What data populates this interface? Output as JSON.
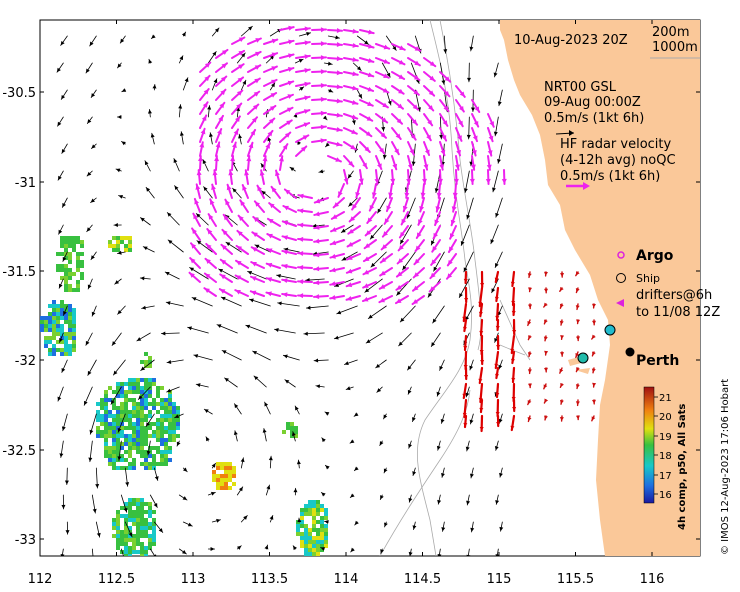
{
  "header": {
    "date": "10-Aug-2023 20Z",
    "depth_label_1": "200m",
    "depth_label_2": "1000m"
  },
  "legend": {
    "gsl_title": "NRT00 GSL",
    "gsl_date": "09-Aug 00:00Z",
    "gsl_scale": "0.5m/s (1kt 6h)",
    "hf_title": "HF radar velocity",
    "hf_sub": "(4-12h avg) noQC",
    "hf_scale": "0.5m/s (1kt 6h)",
    "argo": "Argo",
    "ship": "Ship",
    "drifters_1": "drifters@6h",
    "drifters_2": "to 11/08 12Z"
  },
  "places": {
    "city": "Perth"
  },
  "colorbar": {
    "title": "4h comp, p50, All Sats",
    "ticks": [
      "21",
      "20",
      "19",
      "18",
      "17",
      "16"
    ]
  },
  "credit": "© IMOS 12-Aug-2023 17:06 Hobart",
  "axes": {
    "x_ticks": [
      "112",
      "112.5",
      "113",
      "113.5",
      "114",
      "114.5",
      "115",
      "115.5",
      "116"
    ],
    "y_ticks": [
      "-30.5",
      "-31",
      "-31.5",
      "-32",
      "-32.5",
      "-33"
    ]
  },
  "colors": {
    "land": "#fac899",
    "gsl_arrow": "#000000",
    "hf_arrow": "#ee22ee",
    "hf_arrow_alt": "#dd0000",
    "contour": "#aaaaaa",
    "drifter": "#dd22dd"
  }
}
